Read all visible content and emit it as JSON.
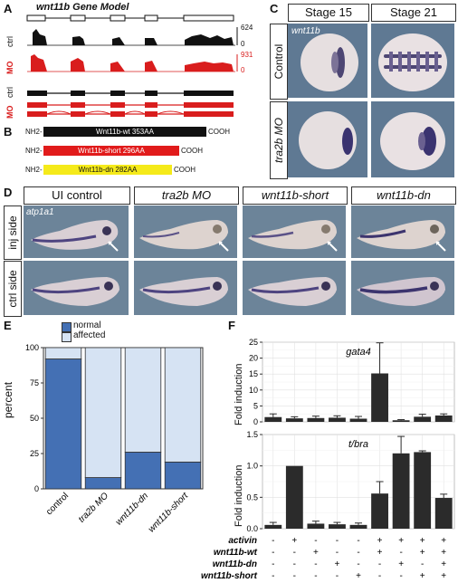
{
  "panels": {
    "a": {
      "label": "A",
      "title": "wnt11b Gene Model",
      "track_labels": [
        "ctrl",
        "MO",
        "ctrl",
        "MO"
      ],
      "scale_ctrl": [
        "624",
        "0"
      ],
      "scale_mo": [
        "931",
        "0"
      ]
    },
    "b": {
      "label": "B",
      "rows": [
        {
          "nh2": "NH2-",
          "name": "Wnt11b-wt  353AA",
          "cooh": "COOH",
          "color": "#111111",
          "text": "#ffffff"
        },
        {
          "nh2": "NH2-",
          "name": "Wnt11b-short  296AA",
          "cooh": "COOH",
          "color": "#e11b1b",
          "text": "#ffffff"
        },
        {
          "nh2": "NH2-",
          "name": "Wnt11b-dn  282AA",
          "cooh": "COOH",
          "color": "#f5ea1a",
          "text": "#111111"
        }
      ]
    },
    "c": {
      "label": "C",
      "columns": [
        "Stage 15",
        "Stage 21"
      ],
      "rows": [
        "Control",
        "tra2b MO"
      ],
      "probe": "wnt11b"
    },
    "d": {
      "label": "D",
      "columns": [
        "UI control",
        "tra2b MO",
        "wnt11b-short",
        "wnt11b-dn"
      ],
      "rows": [
        "inj side",
        "ctrl side"
      ],
      "probe": "atp1a1"
    },
    "e": {
      "label": "E",
      "legend": [
        "normal",
        "affected"
      ],
      "ylabel": "percent",
      "yticks": [
        "100",
        "75",
        "50",
        "25",
        "0"
      ]
    },
    "f": {
      "label": "F",
      "top_title": "gata4",
      "bottom_title": "t/bra",
      "ylabel": "Fold induction",
      "top_yticks": [
        "25",
        "20",
        "15",
        "10",
        "5",
        "0"
      ],
      "bottom_yticks": [
        "1.5",
        "1.0",
        "0.5",
        "0.0"
      ],
      "treatments": [
        {
          "name": "activin",
          "signs": [
            "-",
            "+",
            "-",
            "-",
            "-",
            "+",
            "+",
            "+",
            "+"
          ]
        },
        {
          "name": "wnt11b-wt",
          "signs": [
            "-",
            "-",
            "+",
            "-",
            "-",
            "+",
            "-",
            "+",
            "+"
          ]
        },
        {
          "name": "wnt11b-dn",
          "signs": [
            "-",
            "-",
            "-",
            "+",
            "-",
            "-",
            "+",
            "-",
            "+"
          ]
        },
        {
          "name": "wnt11b-short",
          "signs": [
            "-",
            "-",
            "-",
            "-",
            "+",
            "-",
            "-",
            "+",
            "+"
          ]
        }
      ]
    }
  },
  "chart_data": [
    {
      "type": "bar",
      "panel": "E",
      "stacked": true,
      "categories": [
        "control",
        "tra2b MO",
        "wnt11b-dn",
        "wnt11b-short"
      ],
      "series": [
        {
          "name": "normal",
          "values": [
            92,
            8,
            26,
            19
          ],
          "color": "#4470b4"
        },
        {
          "name": "affected",
          "values": [
            8,
            92,
            74,
            81
          ],
          "color": "#d6e3f3"
        }
      ],
      "ylabel": "percent",
      "ylim": [
        0,
        100
      ]
    },
    {
      "type": "bar",
      "panel": "F-top",
      "title": "gata4",
      "ylabel": "Fold induction",
      "categories": [
        "1",
        "2",
        "3",
        "4",
        "5",
        "6",
        "7",
        "8",
        "9"
      ],
      "values": [
        1.5,
        1.1,
        1.2,
        1.3,
        1.0,
        15.2,
        0.5,
        1.6,
        2.0
      ],
      "errors": [
        1.0,
        0.5,
        0.6,
        0.6,
        0.7,
        9.6,
        0.2,
        0.8,
        0.5
      ],
      "ylim": [
        0,
        25
      ],
      "grid": true
    },
    {
      "type": "bar",
      "panel": "F-bottom",
      "title": "t/bra",
      "ylabel": "Fold induction",
      "categories": [
        "1",
        "2",
        "3",
        "4",
        "5",
        "6",
        "7",
        "8",
        "9"
      ],
      "values": [
        0.06,
        1.0,
        0.08,
        0.07,
        0.06,
        0.56,
        1.2,
        1.22,
        0.49
      ],
      "errors": [
        0.04,
        0.0,
        0.04,
        0.03,
        0.03,
        0.19,
        0.27,
        0.02,
        0.06
      ],
      "ylim": [
        0,
        1.5
      ],
      "grid": true
    }
  ]
}
